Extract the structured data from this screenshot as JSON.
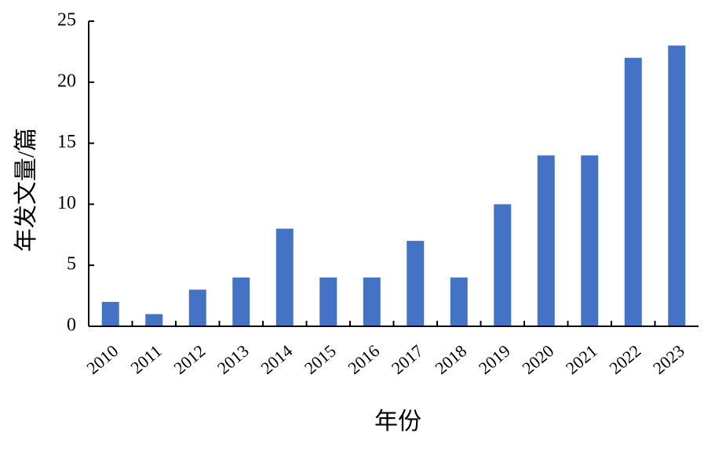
{
  "chart_data": {
    "type": "bar",
    "x_label": "年份",
    "y_label": "年发文量/篇",
    "categories": [
      "2010",
      "2011",
      "2012",
      "2013",
      "2014",
      "2015",
      "2016",
      "2017",
      "2018",
      "2019",
      "2020",
      "2021",
      "2022",
      "2023"
    ],
    "values": [
      2,
      1,
      3,
      4,
      8,
      4,
      4,
      7,
      4,
      10,
      14,
      14,
      22,
      23
    ],
    "color": "#4472c4",
    "ylim": [
      0,
      25
    ],
    "yticks": [
      0,
      5,
      10,
      15,
      20,
      25
    ],
    "grid": false
  }
}
